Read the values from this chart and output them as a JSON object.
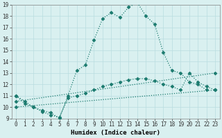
{
  "xlabel": "Humidex (Indice chaleur)",
  "bg_color": "#d9f0f0",
  "line_color": "#1a7a6e",
  "xlim": [
    -0.5,
    23.5
  ],
  "ylim": [
    9,
    19
  ],
  "xticks": [
    0,
    1,
    2,
    3,
    4,
    5,
    6,
    7,
    8,
    9,
    10,
    11,
    12,
    13,
    14,
    15,
    16,
    17,
    18,
    19,
    20,
    21,
    22,
    23
  ],
  "yticks": [
    9,
    10,
    11,
    12,
    13,
    14,
    15,
    16,
    17,
    18,
    19
  ],
  "curve1_x": [
    0,
    1,
    2,
    3,
    4,
    5,
    6,
    7,
    8,
    9,
    10,
    11,
    12,
    13,
    14,
    15,
    16,
    17,
    18,
    19,
    20,
    21,
    22
  ],
  "curve1_y": [
    11,
    10.5,
    10,
    9.7,
    9.5,
    9,
    11,
    13.2,
    13.7,
    15.9,
    17.8,
    18.3,
    17.9,
    18.8,
    19.2,
    18.0,
    17.3,
    14.8,
    13.2,
    13.0,
    12.2,
    12.0,
    11.5
  ],
  "curve2_x": [
    0,
    1,
    2,
    3,
    4,
    5,
    6,
    7,
    8,
    9,
    10,
    11,
    12,
    13,
    14,
    15,
    16,
    17,
    18,
    19,
    20,
    21,
    22,
    23
  ],
  "curve2_y": [
    11,
    10.3,
    10,
    9.6,
    9.3,
    9.1,
    10.8,
    11.0,
    11.2,
    11.5,
    11.8,
    12.0,
    12.2,
    12.4,
    12.5,
    12.5,
    12.3,
    12.0,
    11.8,
    11.5,
    13.0,
    12.2,
    11.8,
    11.5
  ],
  "line3_x": [
    0,
    23
  ],
  "line3_y": [
    10.0,
    11.5
  ],
  "line4_x": [
    0,
    23
  ],
  "line4_y": [
    10.5,
    13.0
  ],
  "markersize": 2.5,
  "linewidth": 0.9,
  "tick_fontsize": 5.5,
  "xlabel_fontsize": 6.5
}
